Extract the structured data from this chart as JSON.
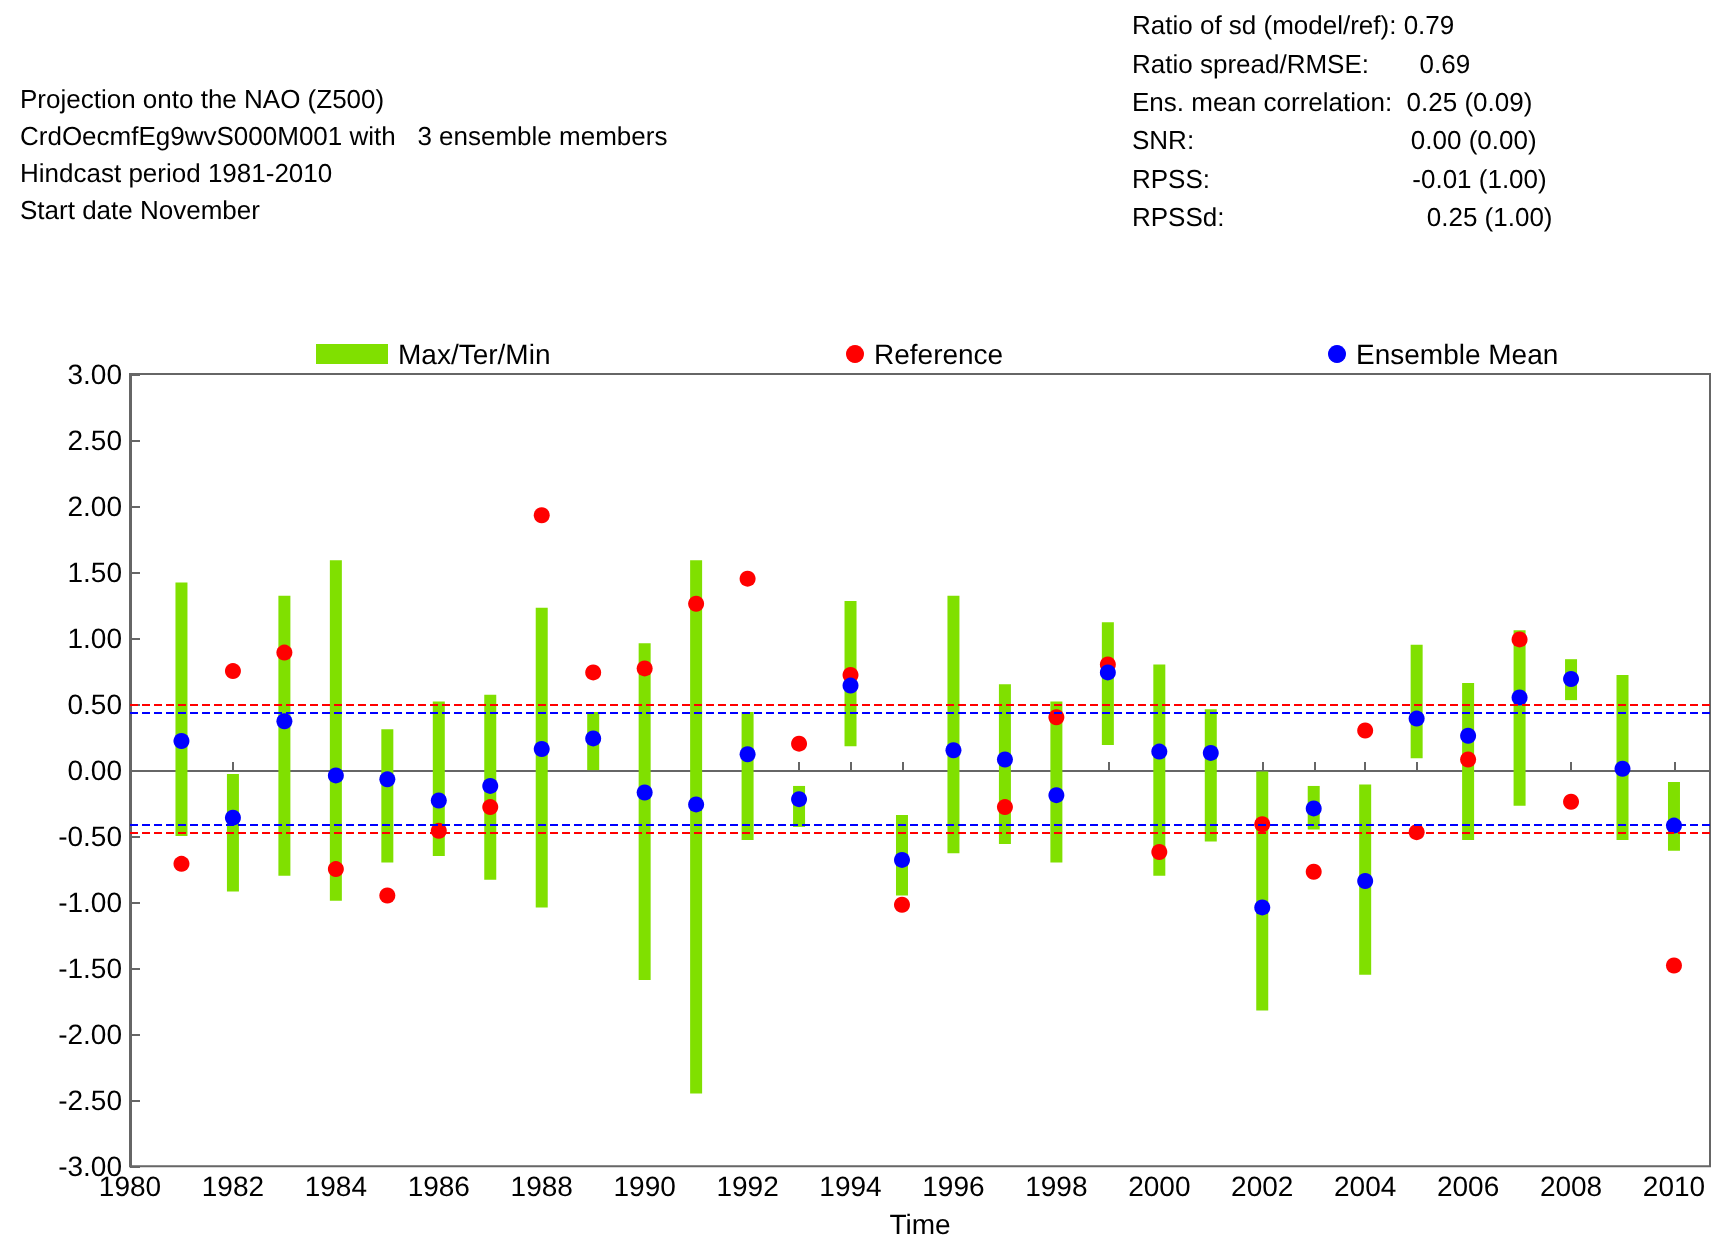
{
  "chart_data": {
    "type": "bar",
    "title": "Projection onto the NAO (Z500)",
    "subtitle": "CrdOecmfEg9wvS000M001 with   3 ensemble members\nHindcast period 1981-2010\nStart date November",
    "annotations": [
      "Ratio of sd (model/ref): 0.79",
      "Ratio spread/RMSE:       0.69",
      "Ens. mean correlation:  0.25 (0.09)",
      "SNR:                              0.00 (0.00)",
      "RPSS:                            -0.01 (1.00)",
      "RPSSd:                            0.25 (1.00)"
    ],
    "xlabel": "Time",
    "x": [
      1981,
      1982,
      1983,
      1984,
      1985,
      1986,
      1987,
      1988,
      1989,
      1990,
      1991,
      1992,
      1993,
      1994,
      1995,
      1996,
      1997,
      1998,
      1999,
      2000,
      2001,
      2002,
      2003,
      2004,
      2005,
      2006,
      2007,
      2008,
      2009,
      2010
    ],
    "series": [
      {
        "name": "Max/Ter/Min",
        "color": "#80e000",
        "base": [
          -0.5,
          -0.92,
          -0.8,
          -0.99,
          -0.7,
          -0.65,
          -0.83,
          -1.04,
          0.0,
          -1.59,
          -2.45,
          -0.53,
          -0.43,
          0.18,
          -0.95,
          -0.63,
          -0.56,
          -0.7,
          0.19,
          -0.8,
          -0.54,
          -1.82,
          -0.45,
          -1.55,
          0.09,
          -0.53,
          -0.27,
          0.53,
          -0.53,
          -0.61
        ],
        "values": [
          1.92,
          0.89,
          2.12,
          2.58,
          1.01,
          1.17,
          1.4,
          2.27,
          0.44,
          2.55,
          4.04,
          0.97,
          0.31,
          1.1,
          0.61,
          1.95,
          1.21,
          1.22,
          0.93,
          1.6,
          1.0,
          1.81,
          0.33,
          1.44,
          0.86,
          1.19,
          1.33,
          0.31,
          1.25,
          0.52
        ]
      },
      {
        "name": "Reference",
        "type": "scatter",
        "color": "#ff0000",
        "values": [
          -0.71,
          0.75,
          0.89,
          -0.75,
          -0.95,
          -0.46,
          -0.28,
          1.93,
          0.74,
          0.77,
          1.26,
          1.45,
          0.2,
          0.72,
          -1.02,
          null,
          -0.28,
          0.4,
          0.8,
          -0.62,
          null,
          -0.41,
          -0.77,
          0.3,
          -0.47,
          0.08,
          0.99,
          -0.24,
          null,
          -1.48
        ]
      },
      {
        "name": "Ensemble Mean",
        "type": "scatter",
        "color": "#0000ff",
        "values": [
          0.22,
          -0.36,
          0.37,
          -0.04,
          -0.07,
          -0.23,
          -0.12,
          0.16,
          0.24,
          -0.17,
          -0.26,
          0.12,
          -0.22,
          0.64,
          -0.68,
          0.15,
          0.08,
          -0.19,
          0.74,
          0.14,
          0.13,
          -1.04,
          -0.29,
          -0.84,
          0.39,
          0.26,
          0.55,
          0.69,
          0.01,
          -0.42
        ]
      }
    ],
    "ref_lines": [
      {
        "axis": "y",
        "value": 0.5,
        "label": null,
        "color": "#ff0000",
        "line_style": "dashed"
      },
      {
        "axis": "y",
        "value": -0.47,
        "label": null,
        "color": "#ff0000",
        "line_style": "dashed"
      },
      {
        "axis": "y",
        "value": 0.44,
        "label": null,
        "color": "#0000ff",
        "line_style": "dashed"
      },
      {
        "axis": "y",
        "value": -0.41,
        "label": null,
        "color": "#0000ff",
        "line_style": "dashed"
      }
    ],
    "xlim": [
      1980,
      2010.7
    ],
    "xticks": [
      1980,
      {
        "value": 1981,
        "label": null
      },
      1982,
      {
        "value": 1983,
        "label": null
      },
      1984,
      {
        "value": 1985,
        "label": null
      },
      1986,
      {
        "value": 1987,
        "label": null
      },
      1988,
      {
        "value": 1989,
        "label": null
      },
      1990,
      {
        "value": 1991,
        "label": null
      },
      1992,
      {
        "value": 1993,
        "label": null
      },
      1994,
      {
        "value": 1995,
        "label": null
      },
      1996,
      {
        "value": 1997,
        "label": null
      },
      1998,
      {
        "value": 1999,
        "label": null
      },
      2000,
      {
        "value": 2001,
        "label": null
      },
      2002,
      {
        "value": 2003,
        "label": null
      },
      2004,
      {
        "value": 2005,
        "label": null
      },
      2006,
      {
        "value": 2007,
        "label": null
      },
      2008,
      {
        "value": 2009,
        "label": null
      },
      2010
    ],
    "ylim": [
      -3,
      3
    ],
    "yticks": [
      {
        "value": -3,
        "label": "-3.00"
      },
      {
        "value": -2.5,
        "label": "-2.50"
      },
      {
        "value": -2,
        "label": "-2.00"
      },
      {
        "value": -1.5,
        "label": "-1.50"
      },
      {
        "value": -1,
        "label": "-1.00"
      },
      {
        "value": -0.5,
        "label": "-0.50"
      },
      {
        "value": 0,
        "label": "0.00"
      },
      {
        "value": 0.5,
        "label": "0.50"
      },
      {
        "value": 1,
        "label": "1.00"
      },
      {
        "value": 1.5,
        "label": "1.50"
      },
      {
        "value": 2,
        "label": "2.00"
      },
      {
        "value": 2.5,
        "label": "2.50"
      },
      {
        "value": 3,
        "label": "3.00"
      }
    ],
    "grid": false,
    "legend": "top",
    "marker": "circle"
  }
}
